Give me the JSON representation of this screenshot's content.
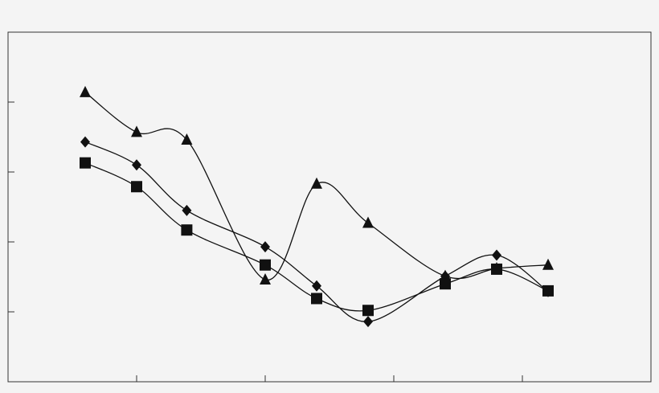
{
  "chart_data": {
    "type": "line",
    "x": [
      0.6,
      1.0,
      1.39,
      2.0,
      2.4,
      2.8,
      3.4,
      3.8,
      4.2
    ],
    "xlim": [
      0,
      5
    ],
    "xticks": [
      1,
      2,
      3,
      4
    ],
    "ylim": [
      0,
      5
    ],
    "yticks": [
      1,
      2,
      3,
      4
    ],
    "grid": false,
    "smooth": true,
    "series": [
      {
        "color": "#111111",
        "marker": "triangle",
        "values": [
          4.14,
          3.57,
          3.46,
          1.46,
          2.83,
          2.27,
          1.51,
          1.62,
          1.67
        ]
      },
      {
        "color": "#111111",
        "marker": "diamond",
        "values": [
          3.43,
          3.1,
          2.45,
          1.93,
          1.37,
          0.86,
          1.51,
          1.81,
          1.29
        ]
      },
      {
        "color": "#111111",
        "marker": "square",
        "values": [
          3.13,
          2.79,
          2.17,
          1.67,
          1.19,
          1.02,
          1.4,
          1.61,
          1.3
        ]
      }
    ]
  }
}
